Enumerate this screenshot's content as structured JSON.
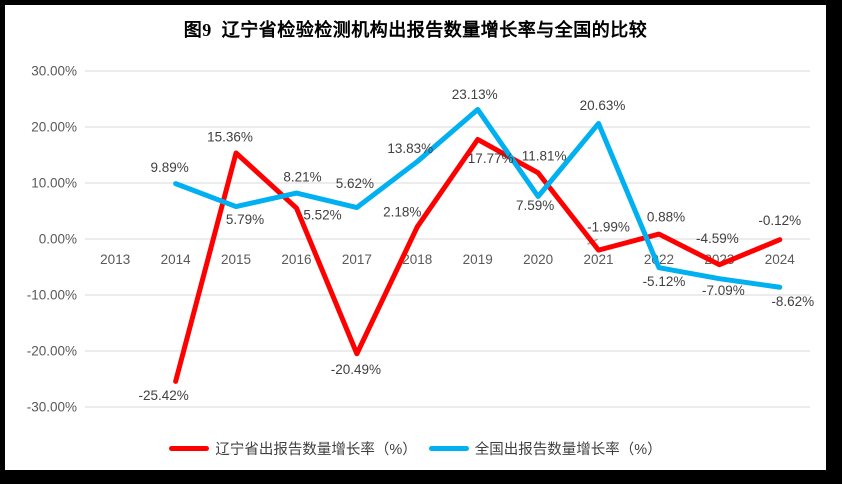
{
  "chart_data": {
    "type": "line",
    "title": "图9  辽宁省检验检测机构出报告数量增长率与全国的比较",
    "xlabel": "",
    "ylabel": "",
    "categories": [
      "2013",
      "2014",
      "2015",
      "2016",
      "2017",
      "2018",
      "2019",
      "2020",
      "2021",
      "2022",
      "2023",
      "2024"
    ],
    "series": [
      {
        "name": "辽宁省出报告数量增长率（%）",
        "color": "#FF0000",
        "values": [
          null,
          -25.42,
          15.36,
          5.52,
          -20.49,
          2.18,
          17.77,
          11.81,
          -1.99,
          0.88,
          -4.59,
          -0.12
        ],
        "label_offsets": [
          null,
          [
            -12,
            14
          ],
          [
            -6,
            -16
          ],
          [
            26,
            7
          ],
          [
            -1,
            16
          ],
          [
            -15,
            -15
          ],
          [
            13,
            19
          ],
          [
            6,
            -17
          ],
          [
            10,
            -23
          ],
          [
            7,
            -17
          ],
          [
            -2,
            -26
          ],
          [
            0,
            -19
          ]
        ]
      },
      {
        "name": "全国出报告数量增长率（%）",
        "color": "#00B0F0",
        "values": [
          null,
          9.89,
          5.79,
          8.21,
          5.62,
          13.83,
          23.13,
          7.59,
          20.63,
          -5.12,
          -7.09,
          -8.62
        ],
        "label_offsets": [
          null,
          [
            -6,
            -16
          ],
          [
            9,
            13
          ],
          [
            6,
            -16
          ],
          [
            -2,
            -24
          ],
          [
            -7,
            -13
          ],
          [
            -3,
            -15
          ],
          [
            -3,
            9
          ],
          [
            4,
            -18
          ],
          [
            5,
            14
          ],
          [
            4,
            12
          ],
          [
            13,
            14
          ]
        ]
      }
    ],
    "ylim": [
      -30,
      30
    ],
    "ytick_step": 10,
    "yticks": [
      "30.00%",
      "20.00%",
      "10.00%",
      "0.00%",
      "-10.00%",
      "-20.00%",
      "-30.00%"
    ],
    "label_format": "{value}%",
    "grid": true,
    "legend_position": "bottom",
    "leader_line": {
      "series": 0,
      "category_index": 8
    },
    "colors": {
      "gridline": "#D9D9D9",
      "axis_text": "#595959",
      "data_label_text": "#404040",
      "leader": "#A6A6A6"
    }
  }
}
